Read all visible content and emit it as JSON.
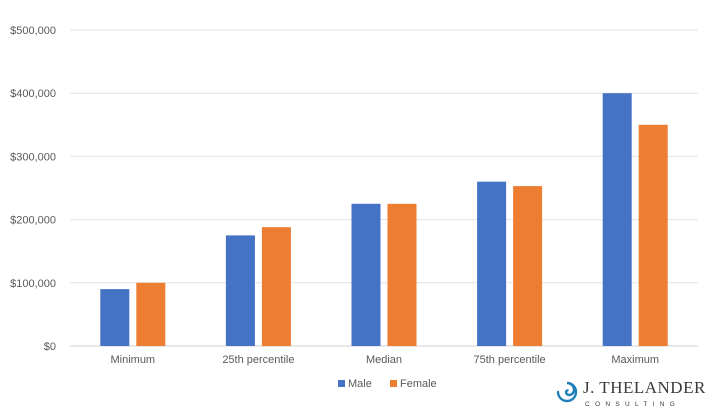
{
  "chart_data": {
    "type": "bar",
    "categories": [
      "Minimum",
      "25th percentile",
      "Median",
      "75th percentile",
      "Maximum"
    ],
    "series": [
      {
        "name": "Male",
        "values": [
          90000,
          175000,
          225000,
          260000,
          400000
        ],
        "color": "#4472C4"
      },
      {
        "name": "Female",
        "values": [
          100000,
          188000,
          225000,
          253000,
          350000
        ],
        "color": "#ED7D31"
      }
    ],
    "ylim": [
      0,
      500000
    ],
    "yticks": [
      0,
      100000,
      200000,
      300000,
      400000,
      500000
    ],
    "ytick_labels": [
      "$0",
      "$100,000",
      "$200,000",
      "$300,000",
      "$400,000",
      "$500,000"
    ],
    "grid": true,
    "legend": "bottom"
  },
  "logo": {
    "name": "J. THELANDER",
    "sub": "CONSULTING",
    "colors": {
      "swirl": "#1f7fb6",
      "text": "#3a3a3a"
    }
  }
}
